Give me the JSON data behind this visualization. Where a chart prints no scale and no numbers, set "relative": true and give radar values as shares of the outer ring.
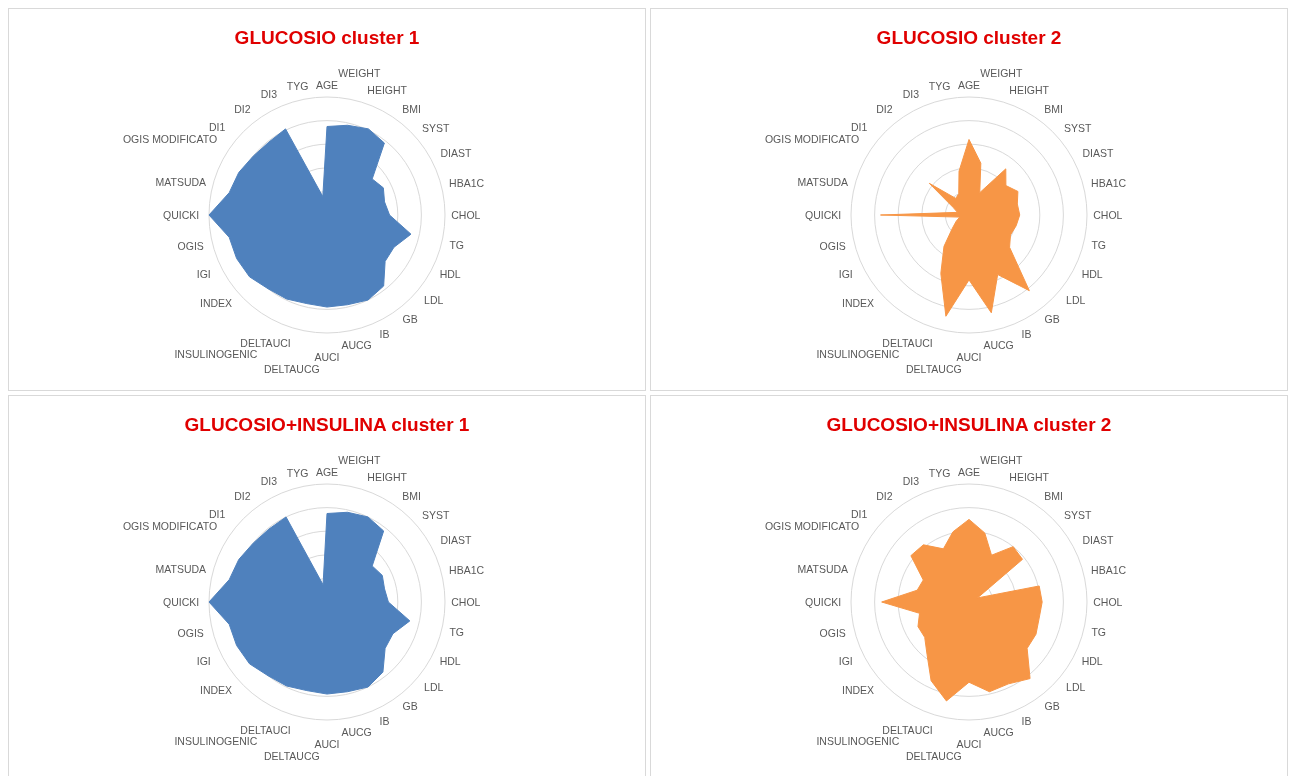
{
  "chart_data": [
    {
      "type": "radar",
      "title": "GLUCOSIO cluster 1",
      "relative": true,
      "grid": true,
      "categories": [
        "AGE",
        "WEIGHT",
        "HEIGHT",
        "BMI",
        "SYST",
        "DIAST",
        "HBA1C",
        "CHOL",
        "TG",
        "HDL",
        "LDL",
        "GB",
        "IB",
        "AUCG",
        "AUCI",
        "DELTAUCG",
        "DELTAUCI",
        "INSULINOGENIC",
        "INDEX",
        "IGI",
        "OGIS",
        "QUICKI",
        "MATSUDA",
        "OGIS MODIFICATO",
        "DI1",
        "DI2",
        "DI3",
        "TYG"
      ],
      "series": [
        {
          "color": "#4f81bd",
          "values": [
            0.75,
            0.78,
            0.81,
            0.78,
            0.49,
            0.53,
            0.5,
            0.53,
            0.73,
            0.63,
            0.63,
            0.77,
            0.8,
            0.78,
            0.78,
            0.77,
            0.79,
            0.8,
            0.84,
            0.85,
            0.85,
            1,
            0.85,
            0.83,
            0.8,
            0.79,
            0.81,
            0.16
          ]
        }
      ]
    },
    {
      "type": "radar",
      "title": "GLUCOSIO cluster 2",
      "relative": true,
      "grid": true,
      "categories": [
        "AGE",
        "WEIGHT",
        "HEIGHT",
        "BMI",
        "SYST",
        "DIAST",
        "HBA1C",
        "CHOL",
        "TG",
        "HDL",
        "LDL",
        "GB",
        "IB",
        "AUCG",
        "AUCI",
        "DELTAUCG",
        "DELTAUCI",
        "INSULINOGENIC",
        "INDEX",
        "IGI",
        "OGIS",
        "QUICKI",
        "MATSUDA",
        "OGIS MODIFICATO",
        "DI1",
        "DI2",
        "DI3",
        "TYG"
      ],
      "series": [
        {
          "color": "#f79646",
          "values": [
            0.64,
            0.45,
            0.21,
            0.5,
            0.4,
            0.46,
            0.42,
            0.43,
            0.41,
            0.39,
            0.44,
            0.82,
            0.56,
            0.85,
            0.55,
            0.88,
            0.55,
            0.34,
            0.18,
            0.12,
            0.08,
            0.75,
            0.1,
            0.15,
            0.43,
            0.18,
            0.2,
            0.38
          ]
        }
      ]
    },
    {
      "type": "radar",
      "title": "GLUCOSIO+INSULINA cluster 1",
      "relative": true,
      "grid": true,
      "categories": [
        "AGE",
        "WEIGHT",
        "HEIGHT",
        "BMI",
        "SYST",
        "DIAST",
        "HBA1C",
        "CHOL",
        "TG",
        "HDL",
        "LDL",
        "GB",
        "IB",
        "AUCG",
        "AUCI",
        "DELTAUCG",
        "DELTAUCI",
        "INSULINOGENIC",
        "INDEX",
        "IGI",
        "OGIS",
        "QUICKI",
        "MATSUDA",
        "OGIS MODIFICATO",
        "DI1",
        "DI2",
        "DI3",
        "TYG"
      ],
      "series": [
        {
          "color": "#4f81bd",
          "values": [
            0.75,
            0.78,
            0.8,
            0.77,
            0.49,
            0.52,
            0.5,
            0.52,
            0.72,
            0.62,
            0.63,
            0.76,
            0.8,
            0.78,
            0.78,
            0.77,
            0.79,
            0.8,
            0.84,
            0.85,
            0.85,
            1,
            0.85,
            0.83,
            0.8,
            0.79,
            0.8,
            0.15
          ]
        }
      ]
    },
    {
      "type": "radar",
      "title": "GLUCOSIO+INSULINA cluster 2",
      "relative": true,
      "grid": true,
      "categories": [
        "AGE",
        "WEIGHT",
        "HEIGHT",
        "BMI",
        "SYST",
        "DIAST",
        "HBA1C",
        "CHOL",
        "TG",
        "HDL",
        "LDL",
        "GB",
        "IB",
        "AUCG",
        "AUCI",
        "DELTAUCG",
        "DELTAUCI",
        "INSULINOGENIC",
        "INDEX",
        "IGI",
        "OGIS",
        "QUICKI",
        "MATSUDA",
        "OGIS MODIFICATO",
        "DI1",
        "DI2",
        "DI3",
        "TYG"
      ],
      "series": [
        {
          "color": "#f79646",
          "values": [
            0.7,
            0.6,
            0.44,
            0.6,
            0.58,
            0.08,
            0.61,
            0.62,
            0.61,
            0.63,
            0.63,
            0.83,
            0.77,
            0.78,
            0.68,
            0.86,
            0.74,
            0.57,
            0.48,
            0.48,
            0.43,
            0.74,
            0.45,
            0.43,
            0.63,
            0.62,
            0.5,
            0.61
          ]
        }
      ]
    }
  ]
}
